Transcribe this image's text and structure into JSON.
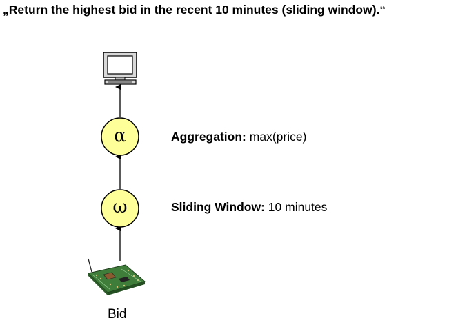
{
  "title": "„Return the highest bid in the recent 10 minutes (sliding window).“",
  "operators": [
    {
      "symbol": "α",
      "label_bold": "Aggregation:",
      "label_text": " max(price)",
      "fill": "#ffff99"
    },
    {
      "symbol": "ω",
      "label_bold": "Sliding Window:",
      "label_text": " 10 minutes",
      "fill": "#ffff99"
    }
  ],
  "source": {
    "label": "Bid",
    "icon": "sensor-board-icon"
  },
  "sink": {
    "icon": "computer-monitor-icon"
  }
}
